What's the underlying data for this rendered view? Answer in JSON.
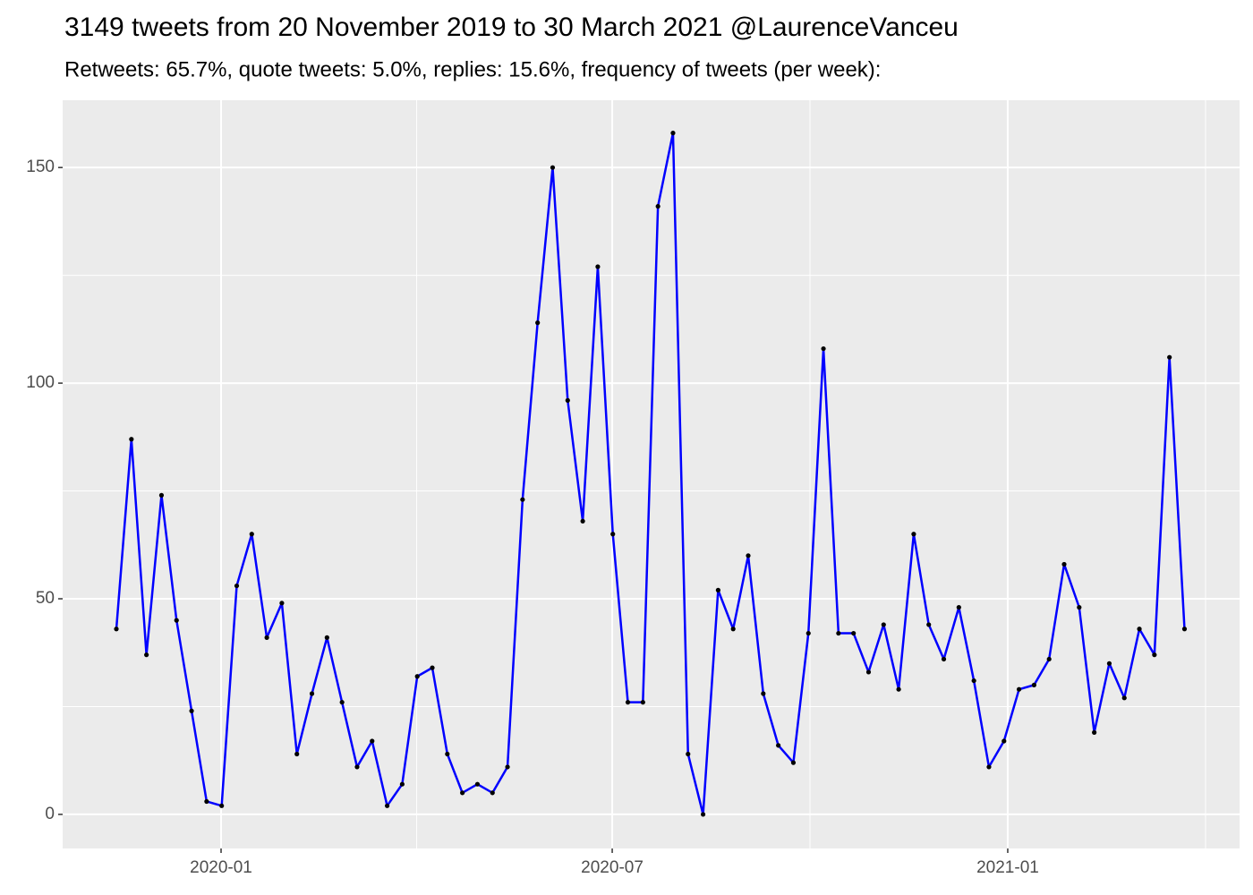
{
  "chart_data": {
    "type": "line",
    "title": "3149 tweets from 20 November 2019 to 30 March 2021 @LaurenceVanceu",
    "subtitle": "Retweets: 65.7%, quote tweets: 5.0%, replies: 15.6%, frequency of tweets (per week):",
    "x": [
      0,
      1,
      2,
      3,
      4,
      5,
      6,
      7,
      8,
      9,
      10,
      11,
      12,
      13,
      14,
      15,
      16,
      17,
      18,
      19,
      20,
      21,
      22,
      23,
      24,
      25,
      26,
      27,
      28,
      29,
      30,
      31,
      32,
      33,
      34,
      35,
      36,
      37,
      38,
      39,
      40,
      41,
      42,
      43,
      44,
      45,
      46,
      47,
      48,
      49,
      50,
      51,
      52,
      53,
      54,
      55,
      56,
      57,
      58,
      59,
      60,
      61,
      62,
      63,
      64,
      65,
      66,
      67,
      68,
      69,
      70,
      71
    ],
    "series": [
      {
        "color": "#0000ff",
        "point_color": "#000000",
        "values": [
          43,
          87,
          37,
          74,
          45,
          24,
          3,
          2,
          53,
          65,
          41,
          49,
          14,
          28,
          41,
          26,
          11,
          17,
          2,
          7,
          32,
          34,
          14,
          5,
          7,
          5,
          11,
          73,
          114,
          150,
          96,
          68,
          127,
          65,
          26,
          26,
          141,
          158,
          14,
          0,
          52,
          43,
          60,
          28,
          16,
          12,
          42,
          108,
          42,
          42,
          33,
          44,
          29,
          65,
          44,
          36,
          48,
          31,
          11,
          17,
          29,
          30,
          36,
          58,
          48,
          19,
          35,
          27,
          43,
          37,
          106,
          43
        ]
      }
    ],
    "xlim": [
      -3.57,
      74.66
    ],
    "xticks": [
      {
        "value": 6.96,
        "label": "2020-01"
      },
      {
        "value": 32.96,
        "label": "2020-07"
      },
      {
        "value": 59.25,
        "label": "2021-01"
      }
    ],
    "ylim": [
      -7.9,
      165.6
    ],
    "yticks": [
      0,
      50,
      100,
      150
    ],
    "grid": true
  }
}
